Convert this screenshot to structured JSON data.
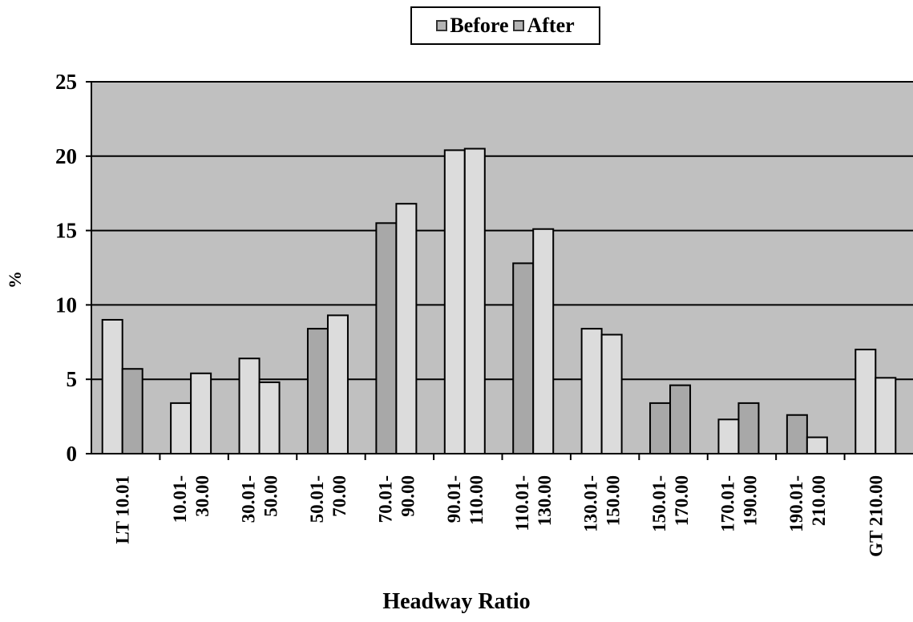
{
  "chart_data": {
    "type": "bar",
    "title": "",
    "xlabel": "Headway Ratio",
    "ylabel": "%",
    "ylim": [
      0,
      25
    ],
    "yticks": [
      0,
      5,
      10,
      15,
      20,
      25
    ],
    "grid": true,
    "legend_position": "top-center",
    "categories": [
      [
        "LT  10.01"
      ],
      [
        "10.01-",
        "30.00"
      ],
      [
        "30.01-",
        "50.00"
      ],
      [
        "50.01-",
        "70.00"
      ],
      [
        "70.01-",
        "90.00"
      ],
      [
        "90.01-",
        "110.00"
      ],
      [
        "110.01-",
        "130.00"
      ],
      [
        "130.01-",
        "150.00"
      ],
      [
        "150.01-",
        "170.00"
      ],
      [
        "170.01-",
        "190.00"
      ],
      [
        "190.01-",
        "210.00"
      ],
      [
        "GT  210.00"
      ]
    ],
    "series": [
      {
        "name": "Before",
        "values": [
          9.0,
          3.4,
          6.4,
          8.4,
          15.5,
          20.4,
          12.8,
          8.4,
          3.4,
          2.3,
          2.6,
          7.0
        ]
      },
      {
        "name": "After",
        "values": [
          5.7,
          5.4,
          4.8,
          9.3,
          16.8,
          20.5,
          15.1,
          8.0,
          4.6,
          3.4,
          1.1,
          5.1
        ]
      }
    ],
    "colors": {
      "plot_bg": "#c0c0c0",
      "bar_light": "#dcdcdc",
      "bar_dark": "#a8a8a8",
      "legend_swatch": "#b4b4b4"
    }
  }
}
